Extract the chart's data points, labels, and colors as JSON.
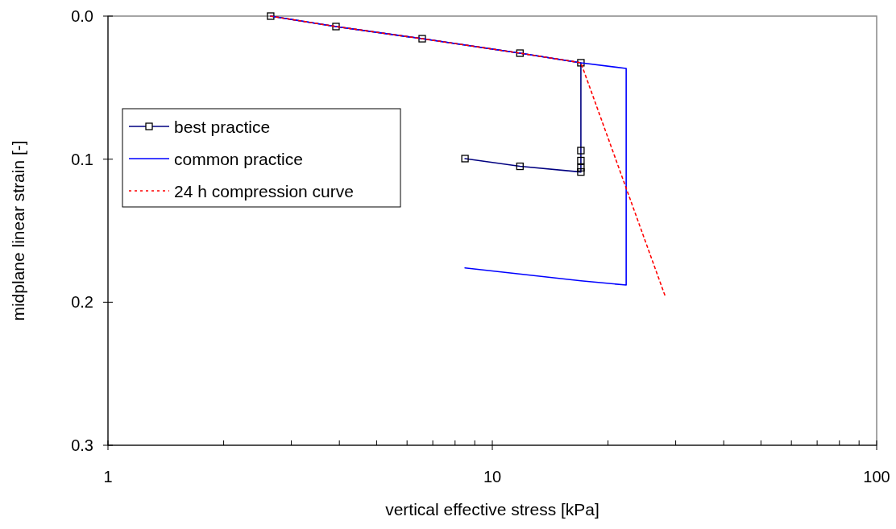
{
  "chart_data": {
    "type": "line",
    "xlabel": "vertical effective stress [kPa]",
    "ylabel": "midplane linear strain [-]",
    "log": "x",
    "xlim": [
      1,
      100
    ],
    "ylim": [
      0.3,
      0
    ],
    "xticks": [
      1,
      {
        "value": 2,
        "label": null
      },
      {
        "value": 3,
        "label": null
      },
      {
        "value": 4,
        "label": null
      },
      {
        "value": 5,
        "label": null
      },
      {
        "value": 6,
        "label": null
      },
      {
        "value": 7,
        "label": null
      },
      {
        "value": 8,
        "label": null
      },
      {
        "value": 9,
        "label": null
      },
      10,
      {
        "value": 20,
        "label": null
      },
      {
        "value": 30,
        "label": null
      },
      {
        "value": 40,
        "label": null
      },
      {
        "value": 50,
        "label": null
      },
      {
        "value": 60,
        "label": null
      },
      {
        "value": 70,
        "label": null
      },
      {
        "value": 80,
        "label": null
      },
      {
        "value": 90,
        "label": null
      },
      100
    ],
    "yticks": [
      {
        "value": 0,
        "label": "0.0"
      },
      {
        "value": 0.1,
        "label": "0.1"
      },
      {
        "value": 0.2,
        "label": "0.2"
      },
      {
        "value": 0.3,
        "label": "0.3"
      }
    ],
    "grid": false,
    "legend": "top left",
    "series": [
      {
        "name": "best practice",
        "color": "#000080",
        "marker": "square",
        "line_style": "solid",
        "x": [
          2.65,
          3.92,
          6.57,
          11.8,
          17.0,
          17.0,
          17.0,
          17.0,
          17.0,
          11.8,
          8.49
        ],
        "values": [
          0,
          0.0073,
          0.0158,
          0.0259,
          0.0326,
          0.094,
          0.101,
          0.106,
          0.109,
          0.105,
          0.0996
        ]
      },
      {
        "name": "common practice",
        "color": "#0000ff",
        "marker": "none",
        "line_style": "solid",
        "x": [
          2.65,
          3.92,
          6.57,
          11.8,
          17.0,
          22.3,
          22.3,
          17.0,
          8.49
        ],
        "values": [
          0,
          0.0073,
          0.0158,
          0.0259,
          0.0326,
          0.0366,
          0.188,
          0.185,
          0.176
        ]
      },
      {
        "name": "24 h compression curve",
        "color": "#ff0000",
        "marker": "none",
        "line_style": "dotted",
        "x": [
          2.65,
          3.92,
          6.57,
          11.8,
          17.0,
          28.1
        ],
        "values": [
          0,
          0.0073,
          0.0158,
          0.0259,
          0.0326,
          0.195
        ]
      }
    ]
  }
}
